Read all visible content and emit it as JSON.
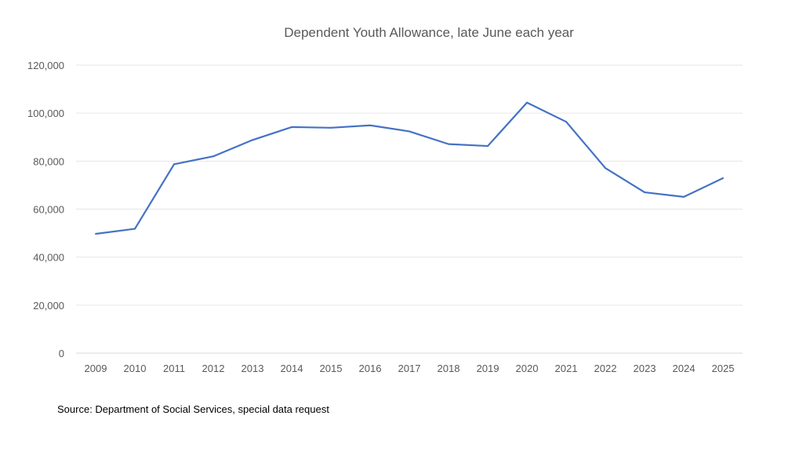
{
  "chart_data": {
    "type": "line",
    "title": "Dependent Youth Allowance, late June each year",
    "xlabel": "",
    "ylabel": "",
    "categories": [
      "2009",
      "2010",
      "2011",
      "2012",
      "2013",
      "2014",
      "2015",
      "2016",
      "2017",
      "2018",
      "2019",
      "2020",
      "2021",
      "2022",
      "2023",
      "2024",
      "2025"
    ],
    "series": [
      {
        "name": "Dependent Youth Allowance",
        "color": "#4472C4",
        "values": [
          49700,
          51800,
          78700,
          82000,
          88800,
          94200,
          93900,
          94900,
          92400,
          87100,
          86300,
          104400,
          96400,
          77100,
          67000,
          65100,
          72900
        ]
      }
    ],
    "ylim": [
      0,
      120000
    ],
    "yticks": [
      0,
      20000,
      40000,
      60000,
      80000,
      100000,
      120000
    ],
    "ytick_labels": [
      "0",
      "20,000",
      "40,000",
      "60,000",
      "80,000",
      "100,000",
      "120,000"
    ],
    "grid": true,
    "legend": "none"
  },
  "source": "Source:  Department of Social Services, special data request"
}
